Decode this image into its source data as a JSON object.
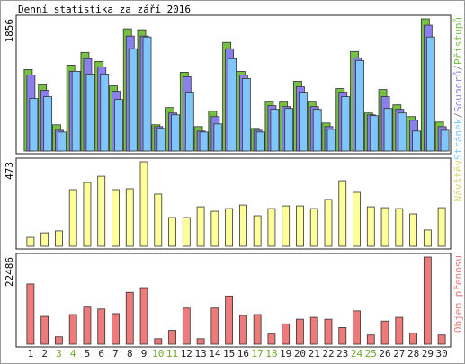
{
  "title": "Denní statistika za září 2016",
  "chart_data": [
    {
      "type": "bar",
      "legend_separator": "/",
      "ylim": [
        0,
        1856
      ],
      "yticks": [
        1856
      ],
      "series": [
        {
          "name": "Stránek",
          "color": "#7fc6ff",
          "values": [
            737,
            763,
            267,
            1119,
            1080,
            1080,
            724,
            1436,
            1601,
            318,
            508,
            826,
            267,
            381,
            1297,
            1017,
            267,
            585,
            597,
            826,
            585,
            305,
            763,
            1271,
            496,
            597,
            534,
            280,
            1601,
            292
          ]
        },
        {
          "name": "Souborů",
          "color": "#8a7fee",
          "values": [
            1068,
            852,
            292,
            1119,
            1297,
            1182,
            839,
            1614,
            1614,
            343,
            534,
            1042,
            280,
            483,
            1436,
            1068,
            292,
            636,
            623,
            902,
            623,
            343,
            826,
            1309,
            508,
            763,
            585,
            432,
            1767,
            343
          ]
        },
        {
          "name": "Přístupů",
          "color": "#76c043",
          "values": [
            1144,
            928,
            369,
            1207,
            1385,
            1258,
            915,
            1716,
            1703,
            369,
            610,
            1106,
            343,
            559,
            1525,
            1118,
            318,
            699,
            699,
            979,
            699,
            394,
            877,
            1398,
            534,
            864,
            648,
            483,
            1856,
            407
          ]
        }
      ]
    },
    {
      "type": "bar",
      "ylim": [
        0,
        473
      ],
      "yticks": [
        473
      ],
      "series": [
        {
          "name": "Návštěv",
          "color": "#ffff99",
          "values": [
            50,
            75,
            86,
            317,
            357,
            392,
            317,
            322,
            473,
            292,
            161,
            161,
            221,
            196,
            211,
            231,
            171,
            211,
            226,
            226,
            211,
            262,
            367,
            302,
            221,
            216,
            211,
            181,
            91,
            216
          ]
        }
      ]
    },
    {
      "type": "bar",
      "ylim": [
        0,
        22486
      ],
      "yticks": [
        22486
      ],
      "categories": [
        "1",
        "2",
        "3",
        "4",
        "5",
        "6",
        "7",
        "8",
        "9",
        "10",
        "11",
        "12",
        "13",
        "14",
        "15",
        "16",
        "17",
        "18",
        "19",
        "20",
        "21",
        "22",
        "23",
        "24",
        "25",
        "26",
        "27",
        "28",
        "29",
        "30"
      ],
      "label_colors": [
        "#222",
        "#222",
        "#6aaa2a",
        "#6aaa2a",
        "#222",
        "#222",
        "#222",
        "#222",
        "#222",
        "#6aaa2a",
        "#6aaa2a",
        "#222",
        "#222",
        "#222",
        "#222",
        "#222",
        "#6aaa2a",
        "#6aaa2a",
        "#222",
        "#222",
        "#222",
        "#222",
        "#222",
        "#6aaa2a",
        "#6aaa2a",
        "#222",
        "#222",
        "#222",
        "#222",
        "#222"
      ],
      "series": [
        {
          "name": "Objem přenosu",
          "color": "#ee7a7a",
          "values": [
            15549,
            7176,
            1914,
            7655,
            9569,
            9090,
            7894,
            13396,
            14592,
            1435,
            3588,
            9329,
            1435,
            9329,
            12439,
            7416,
            7655,
            2631,
            5263,
            6459,
            6937,
            6459,
            4306,
            8612,
            2392,
            5980,
            6937,
            2871,
            22486,
            2392
          ]
        }
      ]
    }
  ]
}
